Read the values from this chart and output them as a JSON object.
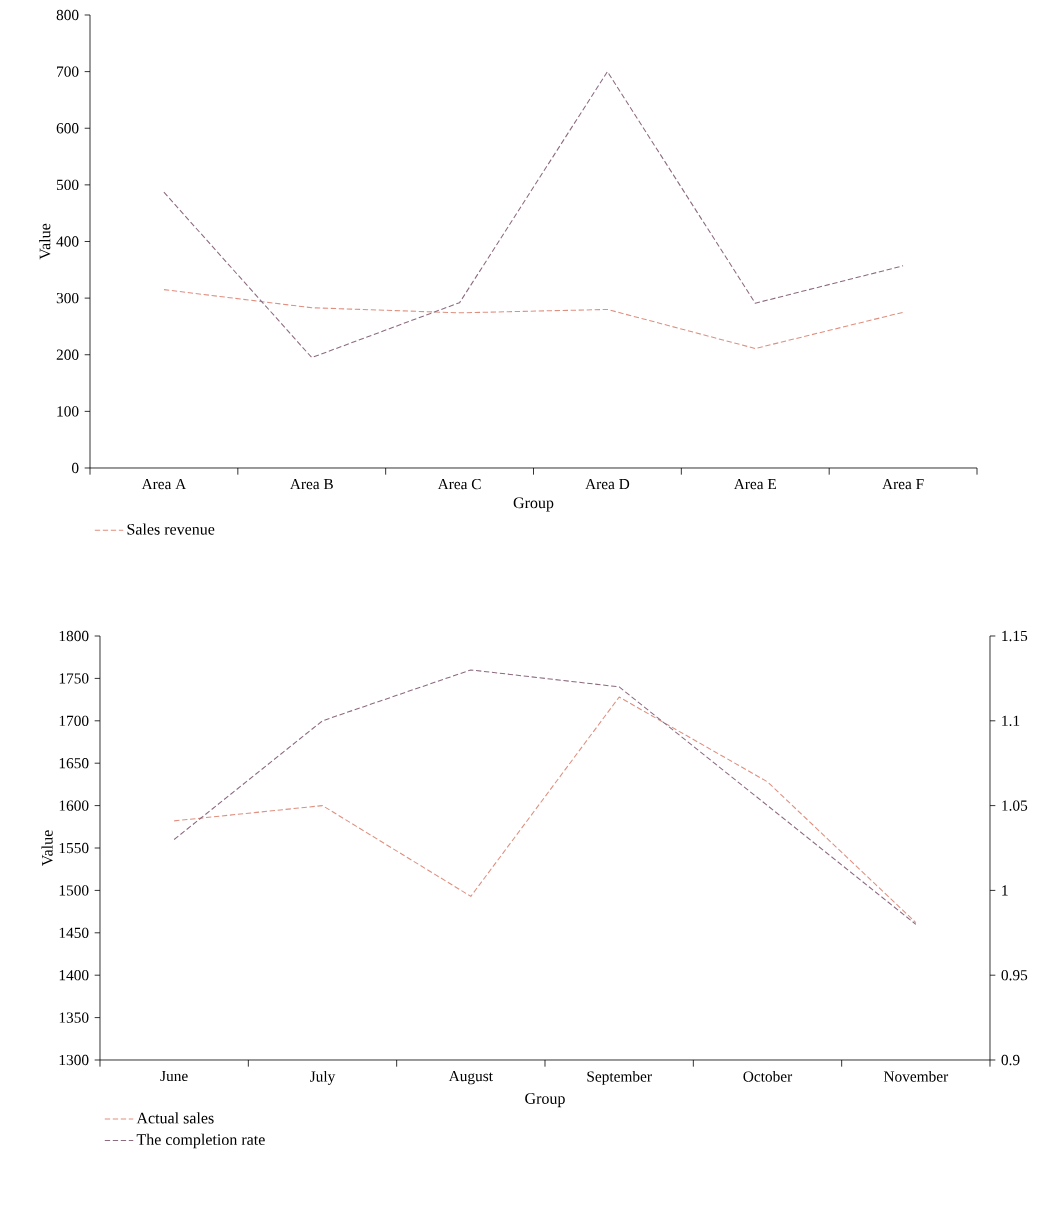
{
  "chart_data": [
    {
      "type": "line",
      "xlabel": "Group",
      "ylabel": "Value",
      "categories": [
        "Area A",
        "Area B",
        "Area C",
        "Area D",
        "Area E",
        "Area F"
      ],
      "ylim": [
        0,
        800
      ],
      "yticks": [
        0,
        100,
        200,
        300,
        400,
        500,
        600,
        700,
        800
      ],
      "line_style": "dashed",
      "legend": "bottom left",
      "series": [
        {
          "name": "Sales revenue",
          "color": "#df8f7f",
          "values": [
            315,
            283,
            274,
            280,
            211,
            275
          ]
        },
        {
          "color": "#8c6a80",
          "values": [
            487,
            195,
            292,
            700,
            291,
            357
          ]
        }
      ]
    },
    {
      "type": "line",
      "xlabel": "Group",
      "ylabel": "Value",
      "categories": [
        "June",
        "July",
        "August",
        "September",
        "October",
        "November"
      ],
      "ylim": [
        1300,
        1800
      ],
      "yticks": [
        1300,
        1350,
        1400,
        1450,
        1500,
        1550,
        1600,
        1650,
        1700,
        1750,
        1800
      ],
      "y2lim": [
        0.9,
        1.15
      ],
      "y2ticks": [
        0.9,
        0.95,
        1,
        1.05,
        1.1,
        1.15
      ],
      "line_style": "dashed",
      "legend": "bottom left",
      "series": [
        {
          "name": "Actual sales",
          "color": "#df8f7f",
          "values": [
            1582,
            1600,
            1493,
            1728,
            1628,
            1462
          ]
        },
        {
          "name": "The completion rate",
          "color": "#8c6a80",
          "axis": "y2",
          "values": [
            1.03,
            1.1,
            1.13,
            1.12,
            1.05,
            0.98
          ]
        }
      ]
    }
  ]
}
